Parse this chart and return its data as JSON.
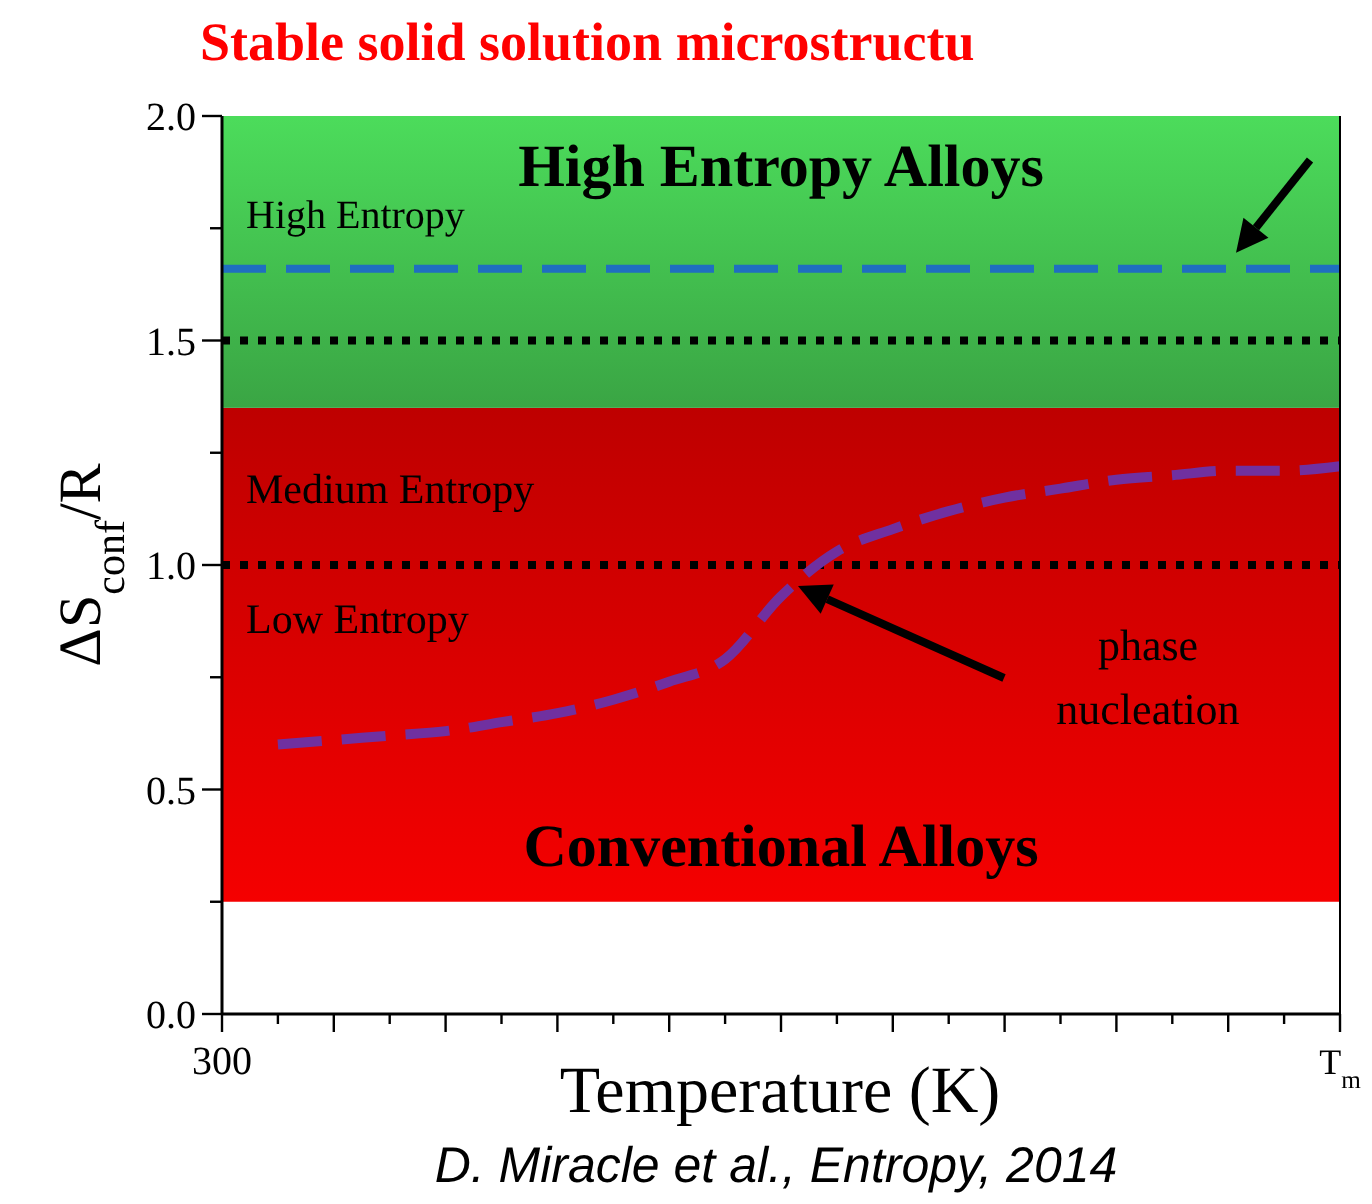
{
  "chart_data": {
    "type": "line",
    "title": "Stable solid solution microstructu",
    "xlabel": "Temperature (K)",
    "ylabel": "ΔS$_{conf}$/R",
    "categories": [
      "300",
      null,
      null,
      null,
      null,
      null,
      null,
      null,
      null,
      null,
      null,
      null,
      null,
      null,
      null,
      null,
      null,
      null,
      null,
      null,
      "T$_{m}$"
    ],
    "ylim": [
      0,
      2
    ],
    "yticks": [
      {
        "value": 0,
        "label": "0.0"
      },
      {
        "value": 0.25,
        "label": null
      },
      {
        "value": 0.5,
        "label": "0.5"
      },
      {
        "value": 0.75,
        "label": null
      },
      {
        "value": 1,
        "label": "1.0"
      },
      {
        "value": 1.25,
        "label": null
      },
      {
        "value": 1.5,
        "label": "1.5"
      },
      {
        "value": 1.75,
        "label": null
      },
      {
        "value": 2,
        "label": "2.0"
      }
    ],
    "bands": [
      {
        "axis": "y",
        "from": 0.25,
        "to": 1.35,
        "label": "Conventional Alloys",
        "color": "#d40000"
      },
      {
        "axis": "y",
        "from": 1.35,
        "to": 2,
        "label": "High Entropy Alloys",
        "color": "#40b84c"
      }
    ],
    "ref_lines": [
      {
        "axis": "y",
        "value": 1.66,
        "color": "#1f6fc0",
        "line_style": "dashed"
      },
      {
        "axis": "y",
        "value": 1.5,
        "color": "#000000",
        "line_style": "dotted"
      },
      {
        "axis": "y",
        "value": 1.0,
        "color": "#000000",
        "line_style": "dotted"
      }
    ],
    "series": [
      {
        "color": "#7030a0",
        "line_style": "dashed",
        "values": [
          null,
          0.6,
          0.61,
          0.62,
          0.63,
          0.65,
          0.67,
          0.7,
          0.74,
          0.79,
          0.93,
          1.03,
          1.08,
          1.12,
          1.15,
          1.17,
          1.19,
          1.2,
          1.21,
          1.21,
          1.22
        ]
      }
    ],
    "marker": "none",
    "annotations": [
      "High Entropy",
      "Medium Entropy",
      "Low Entropy",
      "phase nucleation",
      "D. Miracle et al., Entropy, 2014"
    ]
  }
}
